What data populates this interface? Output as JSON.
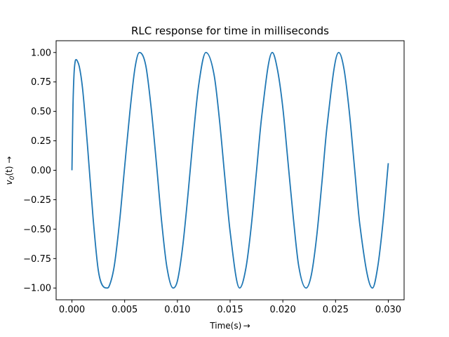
{
  "chart_data": {
    "type": "line",
    "title": "RLC response for time in milliseconds",
    "xlabel": "Time(s) →",
    "ylabel_main": "v",
    "ylabel_sub": "0",
    "ylabel_rest": "(t) →",
    "xlim": [
      -0.0015,
      0.0315
    ],
    "ylim": [
      -1.1,
      1.1
    ],
    "xticks": [
      0.0,
      0.005,
      0.01,
      0.015,
      0.02,
      0.025,
      0.03
    ],
    "xtick_labels": [
      "0.000",
      "0.005",
      "0.010",
      "0.015",
      "0.020",
      "0.025",
      "0.030"
    ],
    "yticks": [
      -1.0,
      -0.75,
      -0.5,
      -0.25,
      0.0,
      0.25,
      0.5,
      0.75,
      1.0
    ],
    "ytick_labels": [
      "−1.00",
      "−0.75",
      "−0.50",
      "−0.25",
      "0.00",
      "0.25",
      "0.50",
      "0.75",
      "1.00"
    ],
    "grid": false,
    "line_color": "#1f77b4",
    "series": [
      {
        "x": [
          0.0,
          0.0001,
          0.0002,
          0.0003,
          0.0004,
          0.0005,
          0.0007,
          0.001,
          0.0015,
          0.002,
          0.0025,
          0.003,
          0.00335,
          0.0035,
          0.004,
          0.0045,
          0.005,
          0.0055,
          0.006,
          0.0064,
          0.007,
          0.0075,
          0.008,
          0.0085,
          0.009,
          0.0096,
          0.01,
          0.0105,
          0.011,
          0.0115,
          0.012,
          0.0127,
          0.0135,
          0.014,
          0.0145,
          0.015,
          0.0159,
          0.0165,
          0.017,
          0.0175,
          0.018,
          0.019,
          0.0195,
          0.02,
          0.0205,
          0.021,
          0.0215,
          0.0222,
          0.0227,
          0.0232,
          0.0237,
          0.0242,
          0.0253,
          0.0258,
          0.0263,
          0.0268,
          0.0273,
          0.0285,
          0.029,
          0.0295,
          0.03
        ],
        "y": [
          0.0,
          0.55,
          0.82,
          0.92,
          0.94,
          0.93,
          0.88,
          0.7,
          0.18,
          -0.4,
          -0.85,
          -0.99,
          -1.0,
          -0.99,
          -0.82,
          -0.45,
          0.03,
          0.5,
          0.88,
          1.0,
          0.89,
          0.54,
          0.07,
          -0.43,
          -0.82,
          -1.0,
          -0.94,
          -0.65,
          -0.21,
          0.28,
          0.71,
          1.0,
          0.8,
          0.42,
          -0.06,
          -0.52,
          -1.0,
          -0.83,
          -0.48,
          -0.01,
          0.46,
          1.0,
          0.85,
          0.53,
          0.06,
          -0.41,
          -0.81,
          -1.0,
          -0.89,
          -0.57,
          -0.11,
          0.38,
          1.0,
          0.86,
          0.5,
          0.02,
          -0.46,
          -1.0,
          -0.82,
          -0.44,
          0.06
        ]
      }
    ]
  }
}
